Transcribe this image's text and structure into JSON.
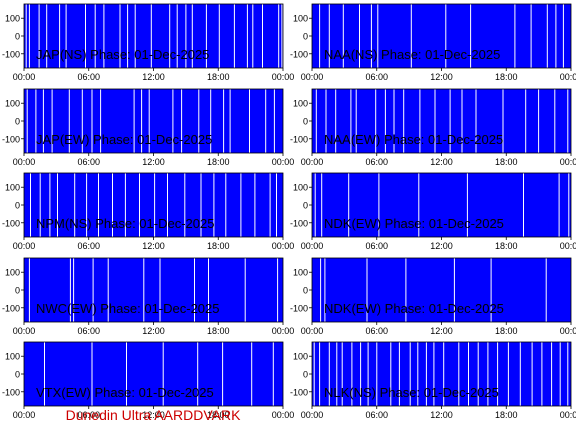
{
  "footer": {
    "text": "Dunedin Ultra AARDDVARK",
    "color": "#cc0000"
  },
  "colors": {
    "plot_bg": "#0000ff",
    "line": "#ffffff",
    "text": "#000000"
  },
  "chart_data": [
    {
      "type": "line",
      "title": "JAP(NS) Phase: 01-Dec-2025",
      "x_ticks": [
        "00:00",
        "06:00",
        "12:00",
        "18:00",
        "00:00"
      ],
      "y_ticks": [
        100,
        0,
        -100
      ],
      "xlim_hours": [
        0,
        24
      ],
      "ylim": [
        -180,
        180
      ],
      "grid": false,
      "series": [
        {
          "spike_times_hours": [
            0.2,
            0.5,
            1.4,
            2.1,
            3.3,
            3.9,
            5.7,
            6.6,
            7.4,
            8.9,
            9.6,
            10.3,
            11.8,
            13.5,
            14.2,
            15.0,
            15.6,
            16.9,
            18.1,
            19.5,
            20.7,
            21.2,
            22.1,
            23.6,
            23.9
          ]
        }
      ]
    },
    {
      "type": "line",
      "title": "NAA(NS) Phase: 01-Dec-2025",
      "x_ticks": [
        "00:00",
        "06:00",
        "12:00",
        "18:00",
        "00:00"
      ],
      "y_ticks": [
        100,
        0,
        -100
      ],
      "xlim_hours": [
        0,
        24
      ],
      "ylim": [
        -180,
        180
      ],
      "grid": false,
      "series": [
        {
          "spike_times_hours": [
            0.7,
            1.6,
            2.9,
            4.4,
            5.5,
            6.1,
            9.2,
            12.4,
            14.7,
            18.8,
            20.3,
            21.8,
            22.6,
            23.3
          ]
        }
      ]
    },
    {
      "type": "line",
      "title": "JAP(EW) Phase: 01-Dec-2025",
      "x_ticks": [
        "00:00",
        "06:00",
        "12:00",
        "18:00",
        "00:00"
      ],
      "y_ticks": [
        100,
        0,
        -100
      ],
      "xlim_hours": [
        0,
        24
      ],
      "ylim": [
        -180,
        180
      ],
      "grid": false,
      "series": [
        {
          "spike_times_hours": [
            0.3,
            1.1,
            1.8,
            2.6,
            4.2,
            5.4,
            6.3,
            7.1,
            10.2,
            10.9,
            11.6,
            13.8,
            14.6,
            16.2,
            17.3,
            18.5,
            19.1,
            20.9,
            22.4,
            23.2
          ]
        }
      ]
    },
    {
      "type": "line",
      "title": "NAA(EW) Phase: 01-Dec-2025",
      "x_ticks": [
        "00:00",
        "06:00",
        "12:00",
        "18:00",
        "00:00"
      ],
      "y_ticks": [
        100,
        0,
        -100
      ],
      "xlim_hours": [
        0,
        24
      ],
      "ylim": [
        -180,
        180
      ],
      "grid": false,
      "series": [
        {
          "spike_times_hours": [
            0.4,
            1.3,
            2.2,
            3.6,
            4.1,
            5.9,
            6.8,
            7.6,
            8.5,
            10.0,
            11.4,
            12.8,
            13.9,
            15.2,
            17.7,
            19.8,
            21.0,
            22.5,
            23.7
          ]
        }
      ]
    },
    {
      "type": "line",
      "title": "NPM(NS) Phase: 01-Dec-2025",
      "x_ticks": [
        "00:00",
        "06:00",
        "12:00",
        "18:00",
        "00:00"
      ],
      "y_ticks": [
        100,
        0,
        -100
      ],
      "xlim_hours": [
        0,
        24
      ],
      "ylim": [
        -180,
        180
      ],
      "grid": false,
      "series": [
        {
          "spike_times_hours": [
            0.6,
            1.5,
            2.4,
            3.1,
            4.7,
            5.8,
            6.9,
            8.2,
            9.4,
            10.7,
            12.1,
            13.3,
            14.9,
            16.4,
            17.6,
            18.7,
            20.1,
            21.4,
            22.8,
            23.4
          ]
        }
      ]
    },
    {
      "type": "line",
      "title": "NDK(EW) Phase: 01-Dec-2025",
      "x_ticks": [
        "00:00",
        "06:00",
        "12:00",
        "18:00",
        "00:00"
      ],
      "y_ticks": [
        100,
        0,
        -100
      ],
      "xlim_hours": [
        0,
        24
      ],
      "ylim": [
        -180,
        180
      ],
      "grid": false,
      "series": [
        {
          "spike_times_hours": [
            0.3,
            0.9,
            3.4,
            6.2,
            9.9,
            14.4,
            19.6,
            22.9,
            23.8
          ]
        }
      ]
    },
    {
      "type": "line",
      "title": "NWC(EW) Phase: 01-Dec-2025",
      "x_ticks": [
        "00:00",
        "06:00",
        "12:00",
        "18:00",
        "00:00"
      ],
      "y_ticks": [
        100,
        0,
        -100
      ],
      "xlim_hours": [
        0,
        24
      ],
      "ylim": [
        -180,
        180
      ],
      "grid": false,
      "series": [
        {
          "spike_times_hours": [
            0.5,
            4.3,
            4.6,
            6.4,
            7.8,
            11.1,
            12.6,
            15.8,
            17.1,
            20.5,
            23.5
          ]
        }
      ]
    },
    {
      "type": "line",
      "title": "NDK(EW) Phase: 01-Dec-2025",
      "x_ticks": [
        "00:00",
        "06:00",
        "12:00",
        "18:00",
        "00:00"
      ],
      "y_ticks": [
        100,
        0,
        -100
      ],
      "xlim_hours": [
        0,
        24
      ],
      "ylim": [
        -180,
        180
      ],
      "grid": false,
      "series": [
        {
          "spike_times_hours": [
            0.8,
            1.2,
            5.1,
            8.7,
            13.2,
            16.6,
            21.7
          ]
        }
      ]
    },
    {
      "type": "line",
      "title": "VTX(EW) Phase: 01-Dec-2025",
      "x_ticks": [
        "00:00",
        "06:00",
        "12:00",
        "18:00",
        "00:00"
      ],
      "y_ticks": [
        100,
        0,
        -100
      ],
      "xlim_hours": [
        0,
        24
      ],
      "ylim": [
        -180,
        180
      ],
      "grid": false,
      "series": [
        {
          "spike_times_hours": [
            1.9,
            6.3,
            9.5,
            12.9,
            16.1,
            18.4,
            21.1,
            23.1
          ]
        }
      ]
    },
    {
      "type": "line",
      "title": "NLK(NS) Phase: 01-Dec-2025",
      "x_ticks": [
        "00:00",
        "06:00",
        "12:00",
        "18:00",
        "00:00"
      ],
      "y_ticks": [
        100,
        0,
        -100
      ],
      "xlim_hours": [
        0,
        24
      ],
      "ylim": [
        -180,
        180
      ],
      "grid": false,
      "series": [
        {
          "spike_times_hours": [
            0.2,
            0.7,
            1.6,
            2.3,
            2.8,
            3.7,
            4.5,
            5.2,
            6.0,
            7.3,
            8.1,
            9.1,
            9.8,
            10.6,
            11.3,
            12.2,
            13.6,
            14.5,
            15.4,
            16.3,
            17.2,
            18.2,
            19.3,
            20.4,
            21.3,
            22.2,
            23.0,
            23.7
          ]
        }
      ]
    }
  ]
}
